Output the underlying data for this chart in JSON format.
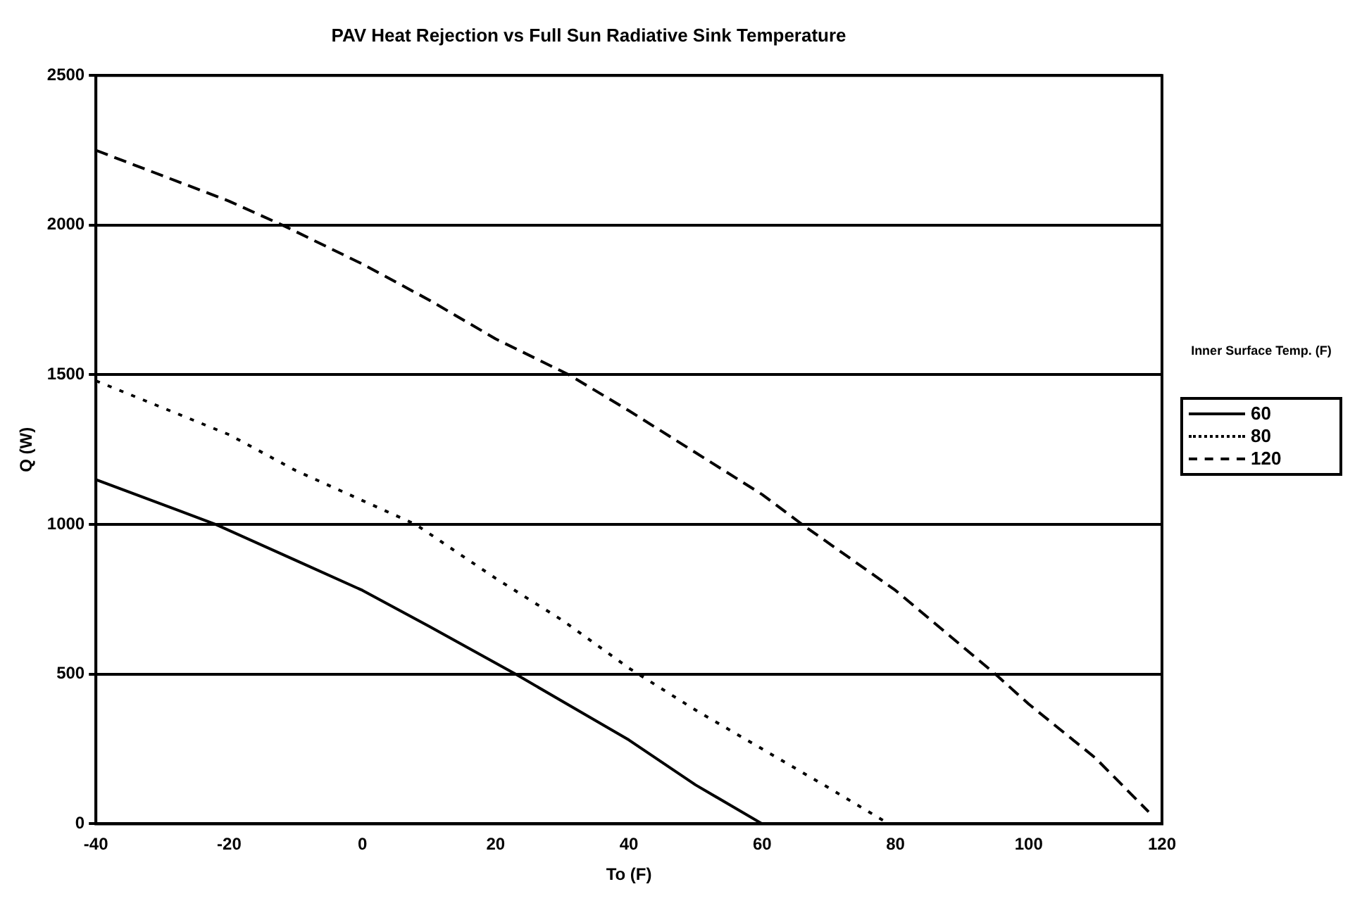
{
  "chart_data": {
    "type": "line",
    "title": "PAV Heat Rejection vs Full Sun Radiative Sink Temperature",
    "xlabel": "To (F)",
    "ylabel": "Q (W)",
    "legend_title": "Inner Surface Temp. (F)",
    "legend": "right",
    "grid": "y",
    "marker": "none",
    "xlim": [
      -40,
      120
    ],
    "xticks": [
      -40,
      -20,
      0,
      20,
      40,
      60,
      80,
      100,
      120
    ],
    "ylim": [
      0,
      2500
    ],
    "yticks": [
      0,
      500,
      1000,
      1500,
      2000,
      2500
    ],
    "series": [
      {
        "name": "60",
        "color": "#000000",
        "line_style": "solid",
        "x": [
          -40,
          -22,
          -10,
          0,
          10,
          23,
          40,
          50,
          60
        ],
        "values": [
          1150,
          1000,
          880,
          780,
          660,
          500,
          280,
          130,
          0
        ]
      },
      {
        "name": "80",
        "color": "#000000",
        "line_style": "dotted",
        "x": [
          -40,
          -20,
          -10,
          0,
          8,
          20,
          30,
          40,
          50,
          60,
          70,
          79
        ],
        "values": [
          1480,
          1300,
          1180,
          1080,
          1000,
          820,
          680,
          520,
          380,
          250,
          120,
          0
        ]
      },
      {
        "name": "120",
        "color": "#000000",
        "line_style": "dashed",
        "x": [
          -40,
          -20,
          -12,
          0,
          10,
          20,
          31,
          40,
          50,
          60,
          66,
          80,
          95,
          100,
          110,
          118
        ],
        "values": [
          2250,
          2080,
          2000,
          1870,
          1750,
          1620,
          1500,
          1380,
          1240,
          1100,
          1000,
          780,
          500,
          400,
          220,
          40
        ]
      }
    ]
  }
}
